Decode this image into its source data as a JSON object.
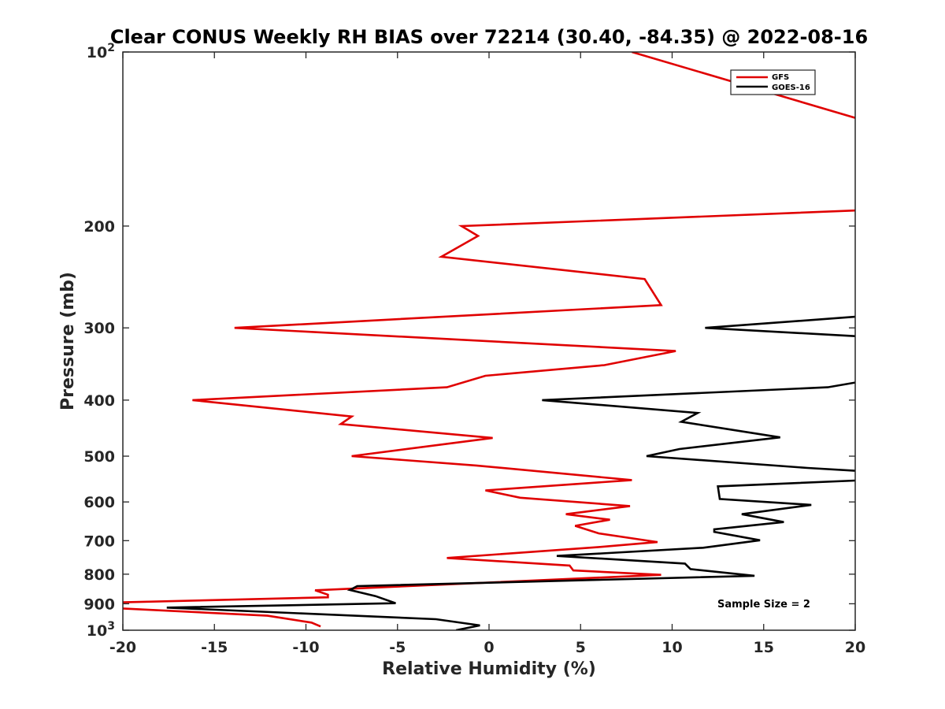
{
  "chart_data": {
    "type": "line",
    "title": "Clear CONUS Weekly RH BIAS over 72214 (30.40, -84.35) @ 2022-08-16",
    "xlabel": "Relative Humidity (%)",
    "ylabel": "Pressure (mb)",
    "xlim": [
      -20,
      20
    ],
    "ylim": [
      100,
      1000
    ],
    "yscale": "log",
    "yreverse": true,
    "x_ticks": [
      -20,
      -15,
      -10,
      -5,
      0,
      5,
      10,
      15,
      20
    ],
    "x_tick_labels": [
      "-20",
      "-15",
      "-10",
      "-5",
      "0",
      "5",
      "10",
      "15",
      "20"
    ],
    "y_ticks": [
      {
        "value": 100,
        "base": "10",
        "exp": "2"
      },
      {
        "value": 200,
        "label": "200"
      },
      {
        "value": 300,
        "label": "300"
      },
      {
        "value": 400,
        "label": "400"
      },
      {
        "value": 500,
        "label": "500"
      },
      {
        "value": 600,
        "label": "600"
      },
      {
        "value": 700,
        "label": "700"
      },
      {
        "value": 800,
        "label": "800"
      },
      {
        "value": 900,
        "label": "900"
      },
      {
        "value": 1000,
        "base": "10",
        "exp": "3"
      }
    ],
    "legend_position": "top-right",
    "annotation": "Sample Size = 2",
    "series": [
      {
        "name": "GFS",
        "color": "#e00000",
        "points": [
          [
            7.8,
            100
          ],
          [
            20,
            130
          ],
          [
            null,
            null
          ],
          [
            20,
            188
          ],
          [
            -1.5,
            200
          ],
          [
            -0.6,
            208
          ],
          [
            -2.6,
            226
          ],
          [
            8.5,
            247
          ],
          [
            9.4,
            274
          ],
          [
            -13.9,
            300
          ],
          [
            10.2,
            329
          ],
          [
            6.3,
            348
          ],
          [
            -0.2,
            363
          ],
          [
            -2.3,
            380
          ],
          [
            -16.2,
            400
          ],
          [
            -7.5,
            427
          ],
          [
            -8.1,
            440
          ],
          [
            0.2,
            465
          ],
          [
            -7.5,
            500
          ],
          [
            -0.7,
            519
          ],
          [
            7.8,
            550
          ],
          [
            -0.2,
            573
          ],
          [
            1.7,
            590
          ],
          [
            7.7,
            610
          ],
          [
            4.2,
            630
          ],
          [
            6.6,
            644
          ],
          [
            4.7,
            660
          ],
          [
            6.0,
            680
          ],
          [
            9.2,
            704
          ],
          [
            6.0,
            718
          ],
          [
            -2.3,
            750
          ],
          [
            4.4,
            773
          ],
          [
            4.6,
            788
          ],
          [
            9.4,
            802
          ],
          [
            -9.5,
            853
          ],
          [
            -8.8,
            868
          ],
          [
            -8.8,
            877
          ],
          [
            -20,
            895
          ],
          [
            null,
            null
          ],
          [
            -20,
            917
          ],
          [
            -12.1,
            944
          ],
          [
            -9.7,
            970
          ],
          [
            -9.2,
            985
          ]
        ]
      },
      {
        "name": "GOES-16",
        "color": "#000000",
        "points": [
          [
            20,
            287
          ],
          [
            11.8,
            300
          ],
          [
            20,
            310
          ],
          [
            null,
            null
          ],
          [
            20,
            373
          ],
          [
            18.5,
            380
          ],
          [
            2.9,
            400
          ],
          [
            11.4,
            421
          ],
          [
            10.5,
            436
          ],
          [
            15.9,
            464
          ],
          [
            10.4,
            486
          ],
          [
            8.6,
            500
          ],
          [
            17.4,
            524
          ],
          [
            20,
            530
          ],
          [
            null,
            null
          ],
          [
            20,
            551
          ],
          [
            12.5,
            564
          ],
          [
            12.6,
            593
          ],
          [
            17.6,
            607
          ],
          [
            13.8,
            630
          ],
          [
            16.1,
            650
          ],
          [
            12.3,
            669
          ],
          [
            12.3,
            676
          ],
          [
            14.8,
            699
          ],
          [
            11.7,
            720
          ],
          [
            3.7,
            744
          ],
          [
            10.7,
            767
          ],
          [
            11.0,
            784
          ],
          [
            14.5,
            805
          ],
          [
            -7.2,
            839
          ],
          [
            -7.6,
            852
          ],
          [
            -6.2,
            873
          ],
          [
            -5.1,
            898
          ],
          [
            -17.6,
            914
          ],
          [
            -2.9,
            957
          ],
          [
            -0.5,
            981
          ],
          [
            -1.8,
            1000
          ]
        ]
      }
    ]
  }
}
